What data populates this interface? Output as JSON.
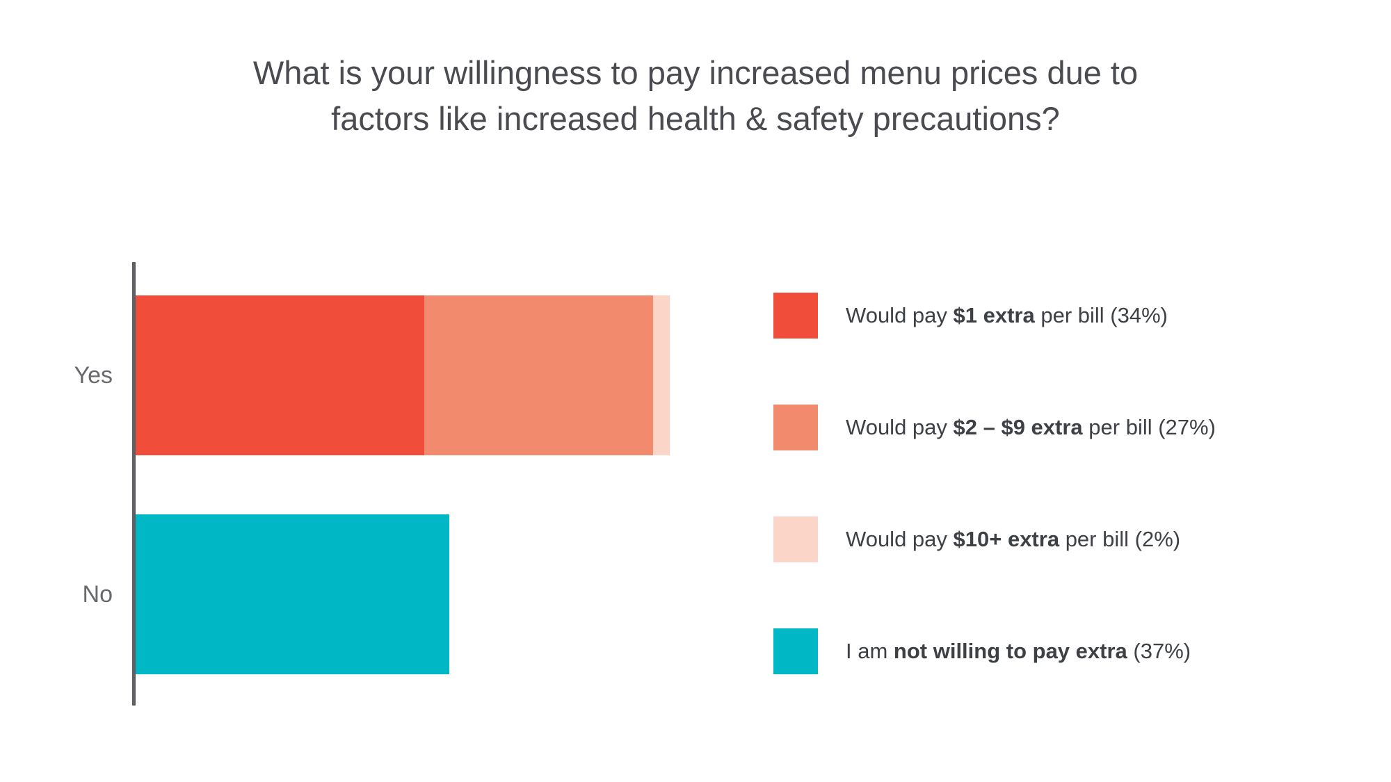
{
  "header": {
    "title_lines": [
      "What is your willingness to pay increased menu prices due to",
      "factors like increased health & safety precautions?"
    ]
  },
  "legend": {
    "items": [
      {
        "key": "pay-1-extra",
        "prefix": "Would pay ",
        "bold": "$1 extra",
        "suffix": " per bill (34%)",
        "percent": 34,
        "color": "#F04E3A"
      },
      {
        "key": "pay-2-9-extra",
        "prefix": "Would pay ",
        "bold": "$2 – $9 extra",
        "suffix": " per bill (27%)",
        "percent": 27,
        "color": "#F28A6D"
      },
      {
        "key": "pay-10-plus-extra",
        "prefix": "Would pay ",
        "bold": "$10+ extra",
        "suffix": " per bill (2%)",
        "percent": 2,
        "color": "#FCD5C9"
      },
      {
        "key": "not-willing",
        "prefix": "I am ",
        "bold": "not willing to pay extra",
        "suffix": " (37%)",
        "percent": 37,
        "color": "#00B8C5"
      }
    ]
  },
  "chart_data": {
    "type": "bar",
    "orientation": "horizontal",
    "stacked": true,
    "title": "What is your willingness to pay increased menu prices due to factors like increased health & safety precautions?",
    "categories": [
      "Yes",
      "No"
    ],
    "series": [
      {
        "key": "pay-1-extra",
        "name": "Would pay $1 extra per bill",
        "color": "#F04E3A",
        "values": [
          34,
          0
        ]
      },
      {
        "key": "pay-2-9-extra",
        "name": "Would pay $2 – $9 extra per bill",
        "color": "#F28A6D",
        "values": [
          27,
          0
        ]
      },
      {
        "key": "pay-10-plus-extra",
        "name": "Would pay $10+ extra per bill",
        "color": "#FCD5C9",
        "values": [
          2,
          0
        ]
      },
      {
        "key": "not-willing",
        "name": "I am not willing to pay extra",
        "color": "#00B8C5",
        "values": [
          0,
          37
        ]
      }
    ],
    "value_unit": "percent",
    "xlim": [
      0,
      63
    ],
    "grid": false,
    "legend_position": "right",
    "axis_color": "#5F6065"
  }
}
